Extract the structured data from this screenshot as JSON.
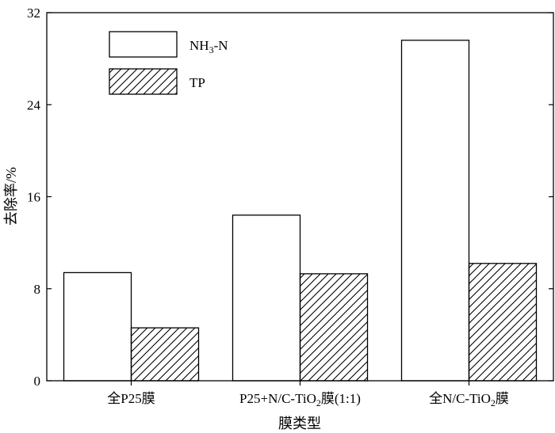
{
  "chart_data": {
    "type": "bar",
    "xlabel": "膜类型",
    "ylabel": "去除率/%",
    "ylim": [
      0,
      32
    ],
    "yticks": [
      0,
      8,
      16,
      24,
      32
    ],
    "categories": [
      {
        "pre": "全P25膜",
        "sub": "",
        "post": ""
      },
      {
        "pre": "P25+N/C-TiO",
        "sub": "2",
        "post": "膜(1:1)"
      },
      {
        "pre": "全N/C-TiO",
        "sub": "2",
        "post": "膜"
      }
    ],
    "series": [
      {
        "name_pre": "NH",
        "name_sub": "3",
        "name_post": "-N",
        "fill": "open",
        "values": [
          9.4,
          14.4,
          29.6
        ]
      },
      {
        "name_pre": "TP",
        "name_sub": "",
        "name_post": "",
        "fill": "hatch",
        "values": [
          4.6,
          9.3,
          10.2
        ]
      }
    ],
    "grid": false,
    "legend": "top-left"
  }
}
